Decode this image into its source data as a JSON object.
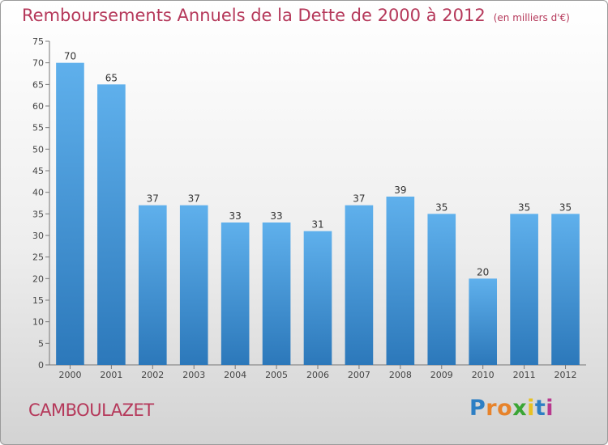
{
  "title": "Remboursements Annuels de la Dette de 2000 à 2012",
  "title_unit": "(en milliers d'€)",
  "commune": "CAMBOULAZET",
  "logo_letters": [
    "P",
    "r",
    "o",
    "x",
    "i",
    "t",
    "i"
  ],
  "colors": {
    "title": "#b5385a",
    "bar_top": "#5fb0ec",
    "bar_bottom": "#2c78ba"
  },
  "chart_data": {
    "type": "bar",
    "title": "Remboursements Annuels de la Dette de 2000 à 2012",
    "subtitle": "(en milliers d'€)",
    "xlabel": "",
    "ylabel": "",
    "categories": [
      "2000",
      "2001",
      "2002",
      "2003",
      "2004",
      "2005",
      "2006",
      "2007",
      "2008",
      "2009",
      "2010",
      "2011",
      "2012"
    ],
    "values": [
      70,
      65,
      37,
      37,
      33,
      33,
      31,
      37,
      39,
      35,
      20,
      35,
      35
    ],
    "ylim": [
      0,
      75
    ],
    "yticks": [
      0,
      5,
      10,
      15,
      20,
      25,
      30,
      35,
      40,
      45,
      50,
      55,
      60,
      65,
      70,
      75
    ],
    "grid": false,
    "legend": "none"
  }
}
